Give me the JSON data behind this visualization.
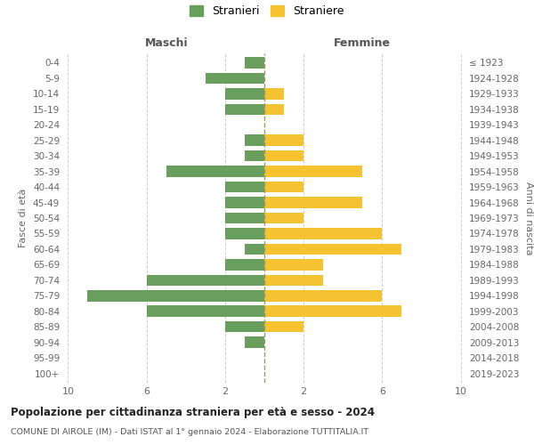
{
  "age_groups": [
    "0-4",
    "5-9",
    "10-14",
    "15-19",
    "20-24",
    "25-29",
    "30-34",
    "35-39",
    "40-44",
    "45-49",
    "50-54",
    "55-59",
    "60-64",
    "65-69",
    "70-74",
    "75-79",
    "80-84",
    "85-89",
    "90-94",
    "95-99",
    "100+"
  ],
  "birth_years": [
    "2019-2023",
    "2014-2018",
    "2009-2013",
    "2004-2008",
    "1999-2003",
    "1994-1998",
    "1989-1993",
    "1984-1988",
    "1979-1983",
    "1974-1978",
    "1969-1973",
    "1964-1968",
    "1959-1963",
    "1954-1958",
    "1949-1953",
    "1944-1948",
    "1939-1943",
    "1934-1938",
    "1929-1933",
    "1924-1928",
    "≤ 1923"
  ],
  "maschi": [
    1,
    3,
    2,
    2,
    0,
    1,
    1,
    5,
    2,
    2,
    2,
    2,
    1,
    2,
    6,
    9,
    6,
    2,
    1,
    0,
    0
  ],
  "femmine": [
    0,
    0,
    1,
    1,
    0,
    2,
    2,
    5,
    2,
    5,
    2,
    6,
    7,
    3,
    3,
    6,
    7,
    2,
    0,
    0,
    0
  ],
  "male_color": "#6a9e5e",
  "female_color": "#f5c232",
  "center_line_color": "#999966",
  "grid_color": "#d0d0d0",
  "title": "Popolazione per cittadinanza straniera per età e sesso - 2024",
  "subtitle": "COMUNE DI AIROLE (IM) - Dati ISTAT al 1° gennaio 2024 - Elaborazione TUTTITALIA.IT",
  "legend_male": "Stranieri",
  "legend_female": "Straniere",
  "xlabel_left": "Maschi",
  "xlabel_right": "Femmine",
  "ylabel_left": "Fasce di età",
  "ylabel_right": "Anni di nascita",
  "xlim": 10,
  "background_color": "#ffffff"
}
